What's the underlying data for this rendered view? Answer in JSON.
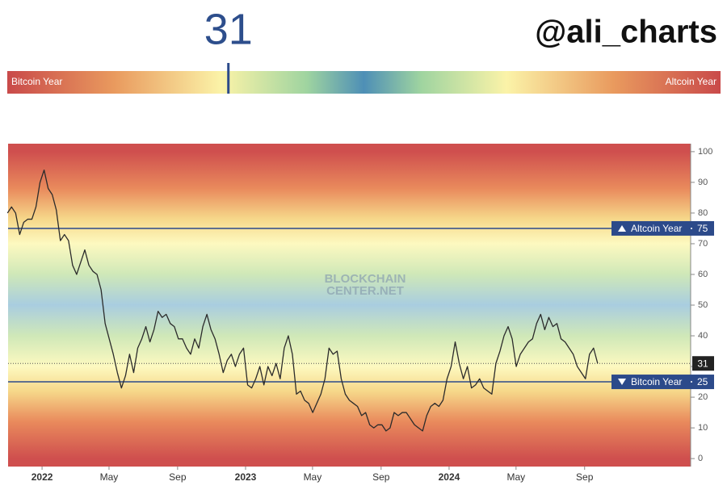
{
  "brand": "@ali_charts",
  "chart_data": {
    "type": "line",
    "current_value": 31,
    "scale_left_label": "Bitcoin Year",
    "scale_right_label": "Altcoin Year",
    "watermark": [
      "BLOCKCHAIN",
      "CENTER.NET"
    ],
    "color": "#2b2b2b",
    "reference_lines": [
      {
        "value": 75,
        "label": "Altcoin Year"
      },
      {
        "value": 25,
        "label": "Bitcoin Year"
      }
    ],
    "x": [
      2021.83,
      2021.85,
      2021.87,
      2021.89,
      2021.91,
      2021.93,
      2021.95,
      2021.97,
      2021.99,
      2022.01,
      2022.03,
      2022.05,
      2022.07,
      2022.09,
      2022.11,
      2022.13,
      2022.15,
      2022.17,
      2022.19,
      2022.21,
      2022.23,
      2022.25,
      2022.27,
      2022.29,
      2022.31,
      2022.33,
      2022.35,
      2022.37,
      2022.39,
      2022.41,
      2022.43,
      2022.45,
      2022.47,
      2022.49,
      2022.51,
      2022.53,
      2022.55,
      2022.57,
      2022.59,
      2022.61,
      2022.63,
      2022.65,
      2022.67,
      2022.69,
      2022.71,
      2022.73,
      2022.75,
      2022.77,
      2022.79,
      2022.81,
      2022.83,
      2022.85,
      2022.87,
      2022.89,
      2022.91,
      2022.93,
      2022.95,
      2022.97,
      2022.99,
      2023.01,
      2023.03,
      2023.05,
      2023.07,
      2023.09,
      2023.11,
      2023.13,
      2023.15,
      2023.17,
      2023.19,
      2023.21,
      2023.23,
      2023.25,
      2023.27,
      2023.29,
      2023.31,
      2023.33,
      2023.35,
      2023.37,
      2023.39,
      2023.41,
      2023.43,
      2023.45,
      2023.47,
      2023.49,
      2023.51,
      2023.53,
      2023.55,
      2023.57,
      2023.59,
      2023.61,
      2023.63,
      2023.65,
      2023.67,
      2023.69,
      2023.71,
      2023.73,
      2023.75,
      2023.77,
      2023.79,
      2023.81,
      2023.83,
      2023.85,
      2023.87,
      2023.89,
      2023.91,
      2023.93,
      2023.95,
      2023.97,
      2023.99,
      2024.01,
      2024.03,
      2024.05,
      2024.07,
      2024.09,
      2024.11,
      2024.13,
      2024.15,
      2024.17,
      2024.19,
      2024.21,
      2024.23,
      2024.25,
      2024.27,
      2024.29,
      2024.31,
      2024.33,
      2024.35,
      2024.37,
      2024.39,
      2024.41,
      2024.43,
      2024.45,
      2024.47,
      2024.49,
      2024.51,
      2024.53,
      2024.55,
      2024.57,
      2024.59,
      2024.61,
      2024.63,
      2024.65,
      2024.67,
      2024.69,
      2024.71,
      2024.73
    ],
    "values": [
      80,
      82,
      80,
      73,
      77,
      78,
      78,
      82,
      90,
      94,
      88,
      86,
      81,
      71,
      73,
      71,
      63,
      60,
      64,
      68,
      63,
      61,
      60,
      55,
      44,
      39,
      34,
      28,
      23,
      27,
      34,
      28,
      36,
      39,
      43,
      38,
      42,
      48,
      46,
      47,
      44,
      43,
      39,
      39,
      36,
      34,
      39,
      36,
      43,
      47,
      42,
      39,
      34,
      28,
      32,
      34,
      30,
      34,
      36,
      24,
      23,
      26,
      30,
      24,
      30,
      27,
      31,
      26,
      36,
      40,
      34,
      21,
      22,
      19,
      18,
      15,
      18,
      21,
      26,
      36,
      34,
      35,
      26,
      21,
      19,
      18,
      17,
      14,
      15,
      11,
      10,
      11,
      11,
      9,
      10,
      15,
      14,
      15,
      15,
      13,
      11,
      10,
      9,
      14,
      17,
      18,
      17,
      19,
      26,
      30,
      38,
      31,
      26,
      30,
      23,
      24,
      26,
      23,
      22,
      21,
      31,
      35,
      40,
      43,
      39,
      30,
      34,
      36,
      38,
      39,
      44,
      47,
      42,
      46,
      43,
      44,
      39,
      38,
      36,
      34,
      30,
      28,
      26,
      34,
      36,
      31
    ],
    "xlim": [
      2021.833,
      2025.187
    ],
    "xticks": [
      2022,
      {
        "value": 2022.329,
        "label": "May"
      },
      {
        "value": 2022.666,
        "label": "Sep"
      },
      2023,
      {
        "value": 2023.329,
        "label": "May"
      },
      {
        "value": 2023.666,
        "label": "Sep"
      },
      2024,
      {
        "value": 2024.329,
        "label": "May"
      },
      {
        "value": 2024.666,
        "label": "Sep"
      }
    ],
    "ylim": [
      -2.6,
      102.6
    ],
    "yticks": [
      0,
      10,
      20,
      30,
      40,
      50,
      60,
      70,
      80,
      90,
      100
    ]
  }
}
